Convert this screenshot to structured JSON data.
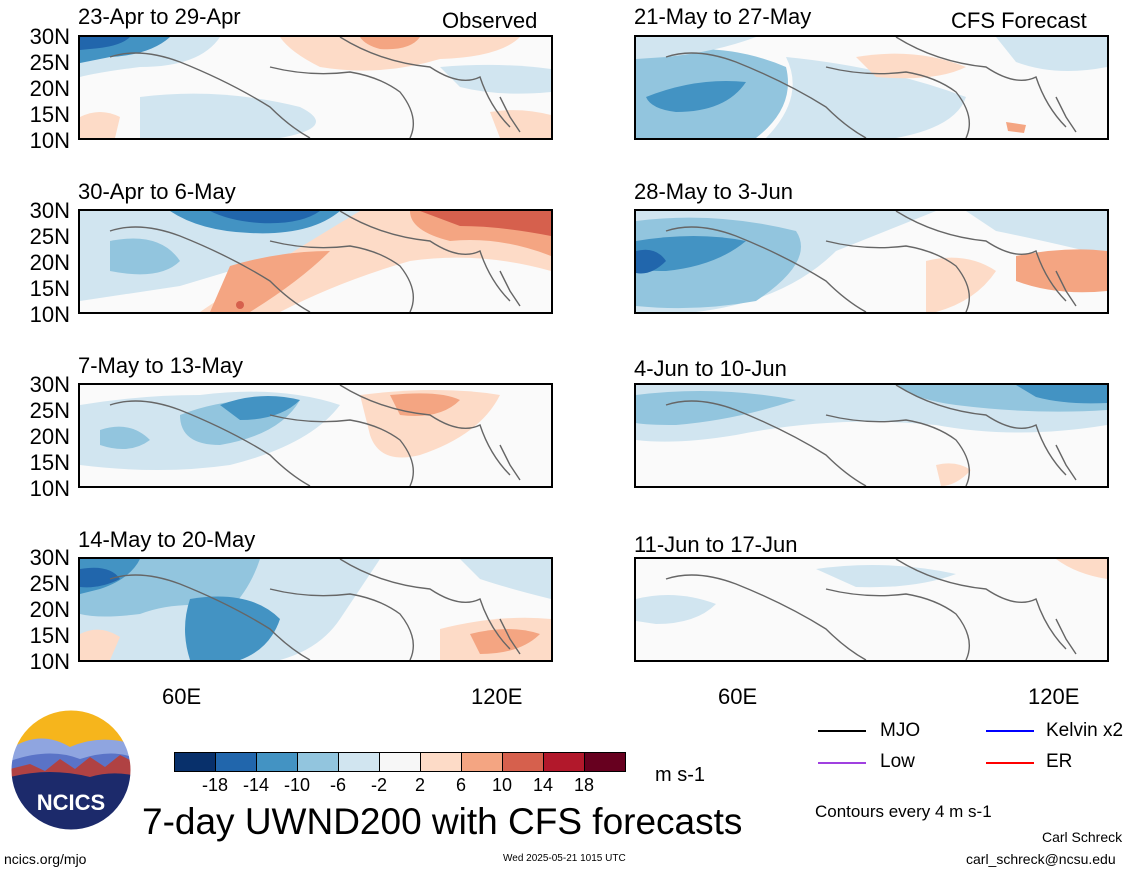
{
  "header": {
    "left_label": "Observed",
    "right_label": "CFS Forecast"
  },
  "y_ticks": [
    "30N",
    "25N",
    "20N",
    "15N",
    "10N"
  ],
  "x_ticks": [
    "60E",
    "120E"
  ],
  "panels": [
    {
      "id": "obs1",
      "period": "23-Apr to 29-Apr"
    },
    {
      "id": "obs2",
      "period": "30-Apr to 6-May"
    },
    {
      "id": "obs3",
      "period": "7-May to 13-May"
    },
    {
      "id": "obs4",
      "period": "14-May to 20-May"
    },
    {
      "id": "fc1",
      "period": "21-May to 27-May"
    },
    {
      "id": "fc2",
      "period": "28-May to 3-Jun"
    },
    {
      "id": "fc3",
      "period": "4-Jun to 10-Jun"
    },
    {
      "id": "fc4",
      "period": "11-Jun to 17-Jun"
    }
  ],
  "colorbar": {
    "ticks": [
      "-18",
      "-14",
      "-10",
      "-6",
      "-2",
      "2",
      "6",
      "10",
      "14",
      "18"
    ],
    "colors": [
      "#08306b",
      "#2166ac",
      "#4393c3",
      "#92c5de",
      "#d1e5f0",
      "#f7f7f7",
      "#fddbc7",
      "#f4a582",
      "#d6604d",
      "#b2182b",
      "#67001f"
    ],
    "units": "m s-1"
  },
  "legend": {
    "items": [
      {
        "label": "MJO",
        "color": "#000000"
      },
      {
        "label": "Kelvin x2",
        "color": "#0000ff"
      },
      {
        "label": "Low",
        "color": "#a040e0"
      },
      {
        "label": "ER",
        "color": "#ff0000"
      }
    ],
    "contours_note": "Contours every 4 m s-1"
  },
  "logo": {
    "text": "NCICS"
  },
  "title": "7-day UWND200 with CFS forecasts",
  "footer": {
    "site": "ncics.org/mjo",
    "timestamp": "Wed 2025-05-21 1015 UTC",
    "author": "Carl Schreck",
    "email": "carl_schreck@ncsu.edu"
  }
}
